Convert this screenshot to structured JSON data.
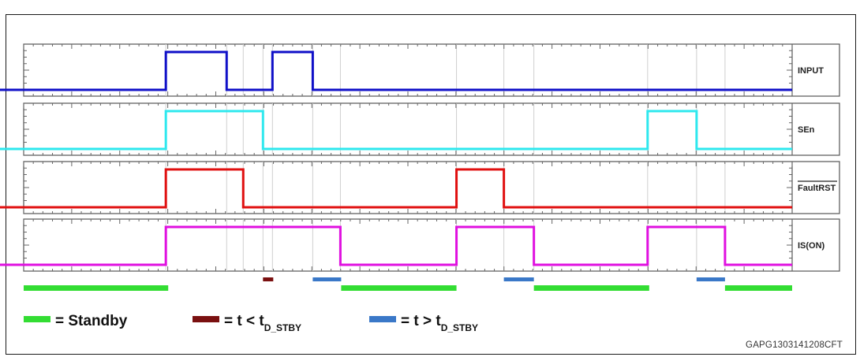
{
  "figure": {
    "code": "GAPG1303141208CFT"
  },
  "channels": [
    {
      "id": "input",
      "label": "INPUT",
      "overline": false,
      "color": "#1010c8",
      "transitions": [
        [
          0,
          0
        ],
        [
          210,
          1
        ],
        [
          287,
          0
        ],
        [
          345,
          1
        ],
        [
          396,
          0
        ]
      ]
    },
    {
      "id": "sen",
      "label": "SEn",
      "overline": false,
      "color": "#2ee8ee",
      "transitions": [
        [
          0,
          0
        ],
        [
          210,
          1
        ],
        [
          333,
          0
        ],
        [
          820,
          1
        ],
        [
          882,
          0
        ]
      ]
    },
    {
      "id": "faultrst",
      "label": "FaultRST",
      "overline": true,
      "color": "#e01010",
      "transitions": [
        [
          0,
          0
        ],
        [
          210,
          1
        ],
        [
          308,
          0
        ],
        [
          578,
          1
        ],
        [
          638,
          0
        ]
      ]
    },
    {
      "id": "is_on",
      "label": "IS(ON)",
      "overline": false,
      "color": "#e010e0",
      "transitions": [
        [
          0,
          0
        ],
        [
          210,
          1
        ],
        [
          431,
          0
        ],
        [
          578,
          1
        ],
        [
          676,
          0
        ],
        [
          820,
          1
        ],
        [
          918,
          0
        ]
      ]
    }
  ],
  "timeline": {
    "t_start": 30,
    "t_end": 1003,
    "markers": [
      210,
      287,
      308,
      333,
      345,
      396,
      431,
      578,
      638,
      676,
      820,
      882,
      918
    ]
  },
  "state_bars": [
    {
      "kind": "standby",
      "from": 30,
      "to": 213
    },
    {
      "kind": "short",
      "from": 333,
      "to": 346
    },
    {
      "kind": "long",
      "from": 396,
      "to": 432
    },
    {
      "kind": "standby",
      "from": 432,
      "to": 578
    },
    {
      "kind": "long",
      "from": 638,
      "to": 676
    },
    {
      "kind": "standby",
      "from": 676,
      "to": 822
    },
    {
      "kind": "long",
      "from": 882,
      "to": 918
    },
    {
      "kind": "standby",
      "from": 918,
      "to": 1003
    }
  ],
  "legend": [
    {
      "kind": "standby",
      "color": "#33dd33",
      "prefix": "= Standby",
      "sub": "",
      "suffix": ""
    },
    {
      "kind": "short",
      "color": "#7a1010",
      "prefix": "= t < t",
      "sub": "D_STBY",
      "suffix": ""
    },
    {
      "kind": "long",
      "color": "#3a78c8",
      "prefix": "= t > t",
      "sub": "D_STBY",
      "suffix": ""
    }
  ]
}
